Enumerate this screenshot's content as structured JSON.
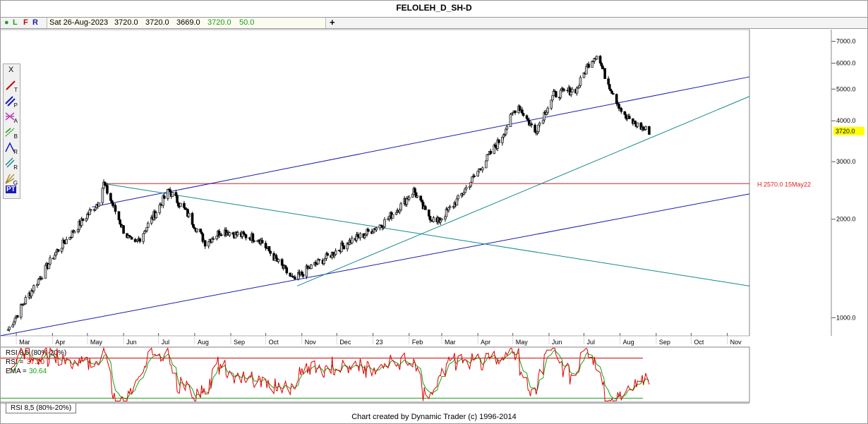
{
  "title": "FELOLEH_D_SH-D",
  "infobar": {
    "flags": [
      "L",
      "F",
      "R"
    ],
    "date": "Sat 26-Aug-2023",
    "open": "3720.0",
    "high": "3720.0",
    "low": "3669.0",
    "close": "3720.0",
    "change": "50.0",
    "add_icon": "+"
  },
  "toolbar": {
    "close_label": "X",
    "tools": [
      {
        "icon": "trendline-icon",
        "label": "T"
      },
      {
        "icon": "parallel-lines-icon",
        "label": "P"
      },
      {
        "icon": "fan-icon",
        "label": "A"
      },
      {
        "icon": "cycle-b-icon",
        "label": "B"
      },
      {
        "icon": "ratio-icon",
        "label": "R"
      },
      {
        "icon": "ratio-parallel-icon",
        "label": "R"
      },
      {
        "icon": "gann-fan-icon",
        "label": "G"
      },
      {
        "icon": "pt-icon",
        "label": "PT"
      }
    ]
  },
  "colors": {
    "up_candle": "#c8c8c8",
    "down_candle": "#000000",
    "channel": "#1a1ab0",
    "teal_line": "#138a8a",
    "horizontal": "#e02020",
    "rsi_line": "#e00000",
    "ema_line": "#18a018",
    "last_price_bg": "#ffff00"
  },
  "rsi_panel": {
    "title": "RSI 8,5 (80%-20%)",
    "rsi_label": "RSI =",
    "rsi_value": "37.20",
    "ema_label": "EMA =",
    "ema_value": "30.64",
    "tab_label": "RSI 8,5 (80%-20%)"
  },
  "footer": "Chart created by Dynamic Trader  (c) 1996-2014",
  "chart_data": {
    "type": "candlestick",
    "title": "FELOLEH_D_SH-D",
    "y_scale": "log",
    "y_ticks": [
      "7000.0",
      "6000.0",
      "5000.0",
      "4000.0",
      "3000.0",
      "2000.0",
      "1000.0"
    ],
    "y_tick_values": [
      7000,
      6000,
      5000,
      4000,
      3000,
      2000,
      1000
    ],
    "x_ticks": [
      "Mar",
      "Apr",
      "May",
      "Jun",
      "Jul",
      "Aug",
      "Sep",
      "Oct",
      "Nov",
      "Dec",
      "23",
      "Feb",
      "Mar",
      "Apr",
      "May",
      "Jun",
      "Jul",
      "Aug",
      "Sep",
      "Oct",
      "Nov"
    ],
    "ylim": [
      880,
      7600
    ],
    "last_price": "3720.0",
    "horizontal_line": {
      "value": 2570,
      "label": "H 2570.0 15May22"
    },
    "price_path": [
      [
        "2022-02-22",
        920
      ],
      [
        "2022-03-10",
        1150
      ],
      [
        "2022-04-05",
        1600
      ],
      [
        "2022-05-10",
        2250
      ],
      [
        "2022-05-15",
        2570
      ],
      [
        "2022-06-01",
        1850
      ],
      [
        "2022-06-10",
        1650
      ],
      [
        "2022-06-25",
        2000
      ],
      [
        "2022-07-10",
        2450
      ],
      [
        "2022-07-25",
        2100
      ],
      [
        "2022-08-10",
        1700
      ],
      [
        "2022-08-25",
        1850
      ],
      [
        "2022-09-05",
        1800
      ],
      [
        "2022-09-25",
        1750
      ],
      [
        "2022-10-10",
        1500
      ],
      [
        "2022-10-25",
        1300
      ],
      [
        "2022-11-05",
        1400
      ],
      [
        "2022-11-25",
        1550
      ],
      [
        "2022-12-10",
        1700
      ],
      [
        "2022-12-25",
        1800
      ],
      [
        "2023-01-10",
        1950
      ],
      [
        "2023-01-25",
        2200
      ],
      [
        "2023-02-05",
        2450
      ],
      [
        "2023-02-15",
        2100
      ],
      [
        "2023-02-25",
        1950
      ],
      [
        "2023-03-15",
        2300
      ],
      [
        "2023-04-01",
        2800
      ],
      [
        "2023-04-20",
        3500
      ],
      [
        "2023-05-05",
        4500
      ],
      [
        "2023-05-20",
        3700
      ],
      [
        "2023-06-05",
        4800
      ],
      [
        "2023-06-25",
        5000
      ],
      [
        "2023-07-05",
        6000
      ],
      [
        "2023-07-12",
        6400
      ],
      [
        "2023-07-20",
        5400
      ],
      [
        "2023-08-05",
        4100
      ],
      [
        "2023-08-20",
        3800
      ],
      [
        "2023-08-26",
        3720
      ]
    ],
    "rsi_zones": [
      20,
      80
    ]
  }
}
